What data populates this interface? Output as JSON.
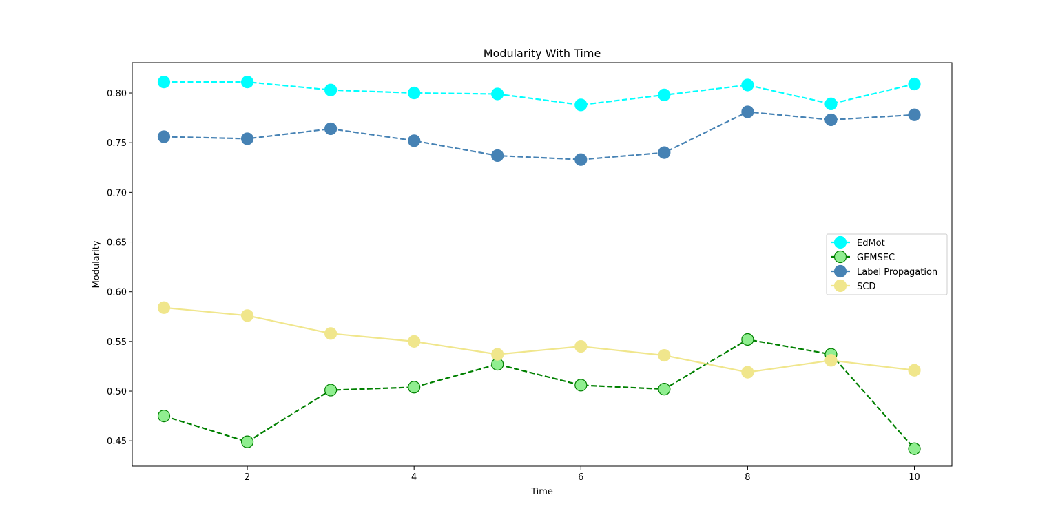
{
  "chart_data": {
    "type": "line",
    "title": "Modularity With Time",
    "xlabel": "Time",
    "ylabel": "Modularity",
    "xlim": [
      0.62,
      10.45
    ],
    "ylim": [
      0.4245,
      0.8305
    ],
    "xticks": [
      2,
      4,
      6,
      8,
      10
    ],
    "yticks": [
      0.45,
      0.5,
      0.55,
      0.6,
      0.65,
      0.7,
      0.75,
      0.8
    ],
    "grid": false,
    "legend_position": "center-right",
    "x": [
      1,
      2,
      3,
      4,
      5,
      6,
      7,
      8,
      9,
      10
    ],
    "series": [
      {
        "name": "EdMot",
        "color": "#00FFFF",
        "edge_color": "#00FFFF",
        "line_style": "dashed",
        "values": [
          0.811,
          0.811,
          0.803,
          0.8,
          0.799,
          0.788,
          0.798,
          0.808,
          0.789,
          0.809
        ]
      },
      {
        "name": "GEMSEC",
        "color": "#90EE90",
        "edge_color": "#008000",
        "line_color": "#008000",
        "line_style": "dashed",
        "values": [
          0.475,
          0.449,
          0.501,
          0.504,
          0.527,
          0.506,
          0.502,
          0.552,
          0.537,
          0.442
        ]
      },
      {
        "name": "Label Propagation",
        "color": "#4682B4",
        "edge_color": "#4682B4",
        "line_style": "dashed",
        "values": [
          0.756,
          0.754,
          0.764,
          0.752,
          0.737,
          0.733,
          0.74,
          0.781,
          0.773,
          0.778
        ]
      },
      {
        "name": "SCD",
        "color": "#F0E68C",
        "edge_color": "#F0E68C",
        "line_style": "solid",
        "values": [
          0.584,
          0.576,
          0.558,
          0.55,
          0.537,
          0.545,
          0.536,
          0.519,
          0.531,
          0.521
        ]
      }
    ]
  }
}
